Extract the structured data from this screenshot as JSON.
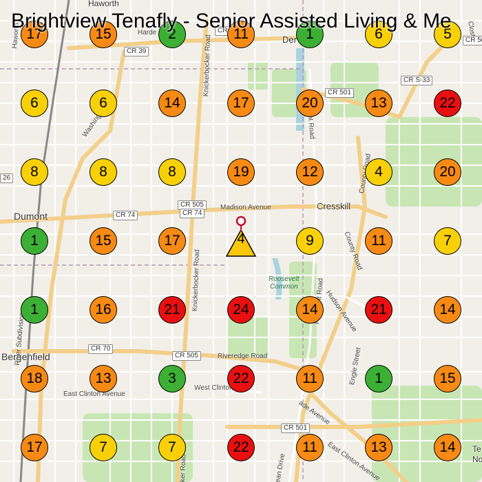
{
  "title": "Brightview Tenafly - Senior Assisted Living & Me",
  "colors": {
    "green": "#3cb034",
    "yellow": "#f7d008",
    "orange": "#f68a14",
    "red": "#e81010",
    "center": "#f8c808"
  },
  "center_marker": {
    "count": "4",
    "icon": "triangle-with-location-pin-icon"
  },
  "grid": [
    [
      {
        "v": "17",
        "c": "orange"
      },
      {
        "v": "15",
        "c": "orange"
      },
      {
        "v": "2",
        "c": "green"
      },
      {
        "v": "11",
        "c": "orange"
      },
      {
        "v": "1",
        "c": "green"
      },
      {
        "v": "6",
        "c": "yellow"
      },
      {
        "v": "5",
        "c": "yellow"
      }
    ],
    [
      {
        "v": "6",
        "c": "yellow"
      },
      {
        "v": "6",
        "c": "yellow"
      },
      {
        "v": "14",
        "c": "orange"
      },
      {
        "v": "17",
        "c": "orange"
      },
      {
        "v": "20",
        "c": "orange"
      },
      {
        "v": "13",
        "c": "orange"
      },
      {
        "v": "22",
        "c": "red"
      }
    ],
    [
      {
        "v": "8",
        "c": "yellow"
      },
      {
        "v": "8",
        "c": "yellow"
      },
      {
        "v": "8",
        "c": "yellow"
      },
      {
        "v": "19",
        "c": "orange"
      },
      {
        "v": "12",
        "c": "orange"
      },
      {
        "v": "4",
        "c": "yellow"
      },
      {
        "v": "20",
        "c": "orange"
      }
    ],
    [
      {
        "v": "1",
        "c": "green"
      },
      {
        "v": "15",
        "c": "orange"
      },
      {
        "v": "17",
        "c": "orange"
      },
      null,
      {
        "v": "9",
        "c": "yellow"
      },
      {
        "v": "11",
        "c": "orange"
      },
      {
        "v": "7",
        "c": "yellow"
      }
    ],
    [
      {
        "v": "1",
        "c": "green"
      },
      {
        "v": "16",
        "c": "orange"
      },
      {
        "v": "21",
        "c": "red"
      },
      {
        "v": "24",
        "c": "red"
      },
      {
        "v": "14",
        "c": "orange"
      },
      {
        "v": "21",
        "c": "red"
      },
      {
        "v": "14",
        "c": "orange"
      }
    ],
    [
      {
        "v": "18",
        "c": "orange"
      },
      {
        "v": "13",
        "c": "orange"
      },
      {
        "v": "3",
        "c": "green"
      },
      {
        "v": "22",
        "c": "red"
      },
      {
        "v": "11",
        "c": "orange"
      },
      {
        "v": "1",
        "c": "green"
      },
      {
        "v": "15",
        "c": "orange"
      }
    ],
    [
      {
        "v": "17",
        "c": "orange"
      },
      {
        "v": "7",
        "c": "yellow"
      },
      {
        "v": "7",
        "c": "yellow"
      },
      {
        "v": "22",
        "c": "red"
      },
      {
        "v": "11",
        "c": "orange"
      },
      {
        "v": "13",
        "c": "orange"
      },
      {
        "v": "14",
        "c": "orange"
      }
    ]
  ],
  "places": {
    "haworth": "Haworth",
    "dumont": "Dumont",
    "bergenfield": "Bergenfield",
    "cresskill": "Cresskill",
    "demarest": "Der",
    "tenafly_partial_1": "Te",
    "tenafly_partial_2": "No"
  },
  "parks": {
    "roosevelt_common": "Roosevelt\nCommon"
  },
  "roads": {
    "madison_avenue": "Madison Avenue",
    "riveredge_road": "Riveredge Road",
    "west_clinton": "West Clinton",
    "east_clinton_avenue_1": "East Clinton Avenue",
    "east_clinton_avenue_2": "East Clinton Avenue",
    "washington": "Washington",
    "knickerbocker_road_1": "Knickerbocker Road",
    "knickerbocker_road_2": "Knickerbocker Road",
    "knickerbocker_road_3": "ker Road",
    "hudson_avenue": "Hudson Avenue",
    "county_road_1": "County Road",
    "county_road_2": "County Road",
    "piermont_road_1": "Piermont Road",
    "piermont_road_2": "Piermont Road",
    "engle_street": "Engle Street",
    "river_subdivision": "River Subdivision",
    "harden": "Harde",
    "haworth_road": "Haworth",
    "closter": "Closter",
    "ade_avenue": "ade Avenue",
    "ean_drive": "ean Drive"
  },
  "shields": {
    "cr39": "CR 39",
    "cr501_north": "CR 501",
    "crs33": "CR S-33",
    "cr505_a": "CR 505",
    "cr74_a": "CR 74",
    "cr74_b": "CR 74",
    "cr70": "CR 70",
    "cr505_b": "CR 505",
    "cr501_south": "CR 501",
    "cr50_partial": "CR 50",
    "cr50_partial_2": "CR 50",
    "cr26_partial": "26"
  }
}
